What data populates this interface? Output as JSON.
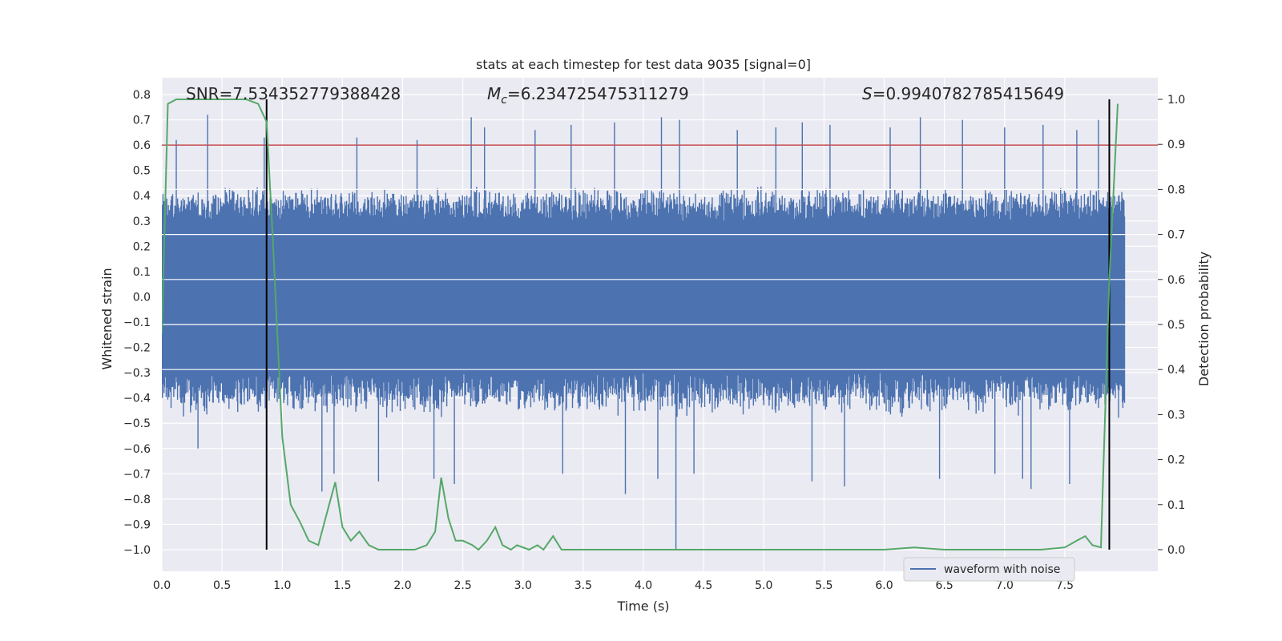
{
  "chart_data": {
    "type": "line",
    "title": "stats at each timestep for test data 9035 [signal=0]",
    "xlabel": "Time (s)",
    "ylabel_left": "Whitened strain",
    "ylabel_right": "Detection probability",
    "xlim": [
      0.0,
      8.0
    ],
    "ylim_left": [
      -1.1,
      0.85
    ],
    "ylim_right": [
      -0.05,
      1.05
    ],
    "x_ticks": [
      "0.0",
      "0.5",
      "1.0",
      "1.5",
      "2.0",
      "2.5",
      "3.0",
      "3.5",
      "4.0",
      "4.5",
      "5.0",
      "5.5",
      "6.0",
      "6.5",
      "7.0",
      "7.5"
    ],
    "y_ticks_left": [
      "0.8",
      "0.7",
      "0.6",
      "0.5",
      "0.4",
      "0.3",
      "0.2",
      "0.1",
      "0.0",
      "−0.1",
      "−0.2",
      "−0.3",
      "−0.4",
      "−0.5",
      "−0.6",
      "−0.7",
      "−0.8",
      "−0.9",
      "−1.0"
    ],
    "y_ticks_right": [
      "1.0",
      "0.9",
      "0.8",
      "0.7",
      "0.6",
      "0.5",
      "0.4",
      "0.3",
      "0.2",
      "0.1",
      "0.0"
    ],
    "grid": true,
    "legend_position": "lower-right",
    "legend_label": "waveform with noise",
    "annotations": {
      "snr": "SNR=7.534352779388428",
      "mc": "=6.234725475311279",
      "mc_symbol": "M",
      "mc_subscript": "c",
      "s": "=0.9940782785415649",
      "s_symbol": "S"
    },
    "threshold": {
      "value": 0.6,
      "axis": "left",
      "color": "#c44e52"
    },
    "vertical_lines": [
      0.87,
      7.87
    ],
    "colors": {
      "waveform": "#4c72b0",
      "probability": "#55a868",
      "threshold": "#c44e52",
      "vertical_lines": "#000000",
      "plot_background": "#eaeaf2",
      "grid": "#ffffff"
    },
    "waveform": {
      "series_name": "waveform with noise",
      "core_band": [
        -0.3,
        0.3
      ],
      "envelope_typical": [
        -0.45,
        0.42
      ],
      "spikes": [
        [
          0.38,
          0.72
        ],
        [
          0.12,
          0.62
        ],
        [
          0.85,
          0.63
        ],
        [
          1.62,
          0.63
        ],
        [
          2.12,
          0.62
        ],
        [
          2.57,
          0.71
        ],
        [
          2.68,
          0.67
        ],
        [
          3.1,
          0.66
        ],
        [
          3.4,
          0.68
        ],
        [
          3.76,
          0.69
        ],
        [
          4.15,
          0.71
        ],
        [
          4.3,
          0.7
        ],
        [
          4.78,
          0.66
        ],
        [
          5.1,
          0.67
        ],
        [
          5.32,
          0.69
        ],
        [
          5.55,
          0.68
        ],
        [
          6.05,
          0.67
        ],
        [
          6.3,
          0.71
        ],
        [
          6.65,
          0.7
        ],
        [
          7.0,
          0.67
        ],
        [
          7.32,
          0.68
        ],
        [
          7.6,
          0.66
        ],
        [
          7.78,
          0.7
        ],
        [
          0.3,
          -0.6
        ],
        [
          1.33,
          -0.77
        ],
        [
          1.43,
          -0.7
        ],
        [
          1.8,
          -0.73
        ],
        [
          2.26,
          -0.72
        ],
        [
          2.43,
          -0.74
        ],
        [
          3.33,
          -0.7
        ],
        [
          3.85,
          -0.78
        ],
        [
          4.12,
          -0.72
        ],
        [
          4.27,
          -1.0
        ],
        [
          4.42,
          -0.7
        ],
        [
          5.4,
          -0.73
        ],
        [
          5.67,
          -0.75
        ],
        [
          6.46,
          -0.72
        ],
        [
          6.92,
          -0.7
        ],
        [
          7.15,
          -0.72
        ],
        [
          7.22,
          -0.76
        ],
        [
          7.54,
          -0.74
        ]
      ]
    },
    "detection_probability": {
      "x": [
        0.0,
        0.05,
        0.12,
        0.2,
        0.3,
        0.5,
        0.7,
        0.8,
        0.87,
        0.92,
        1.0,
        1.07,
        1.15,
        1.22,
        1.3,
        1.37,
        1.44,
        1.5,
        1.57,
        1.64,
        1.72,
        1.8,
        1.9,
        2.0,
        2.1,
        2.2,
        2.27,
        2.32,
        2.38,
        2.44,
        2.5,
        2.58,
        2.63,
        2.7,
        2.77,
        2.83,
        2.9,
        2.95,
        3.05,
        3.12,
        3.17,
        3.25,
        3.32,
        3.4,
        3.6,
        4.0,
        4.5,
        5.0,
        5.5,
        6.0,
        6.25,
        6.5,
        7.0,
        7.2,
        7.3,
        7.5,
        7.6,
        7.67,
        7.73,
        7.8,
        7.87,
        7.94
      ],
      "y": [
        0.48,
        0.99,
        1.0,
        1.0,
        1.0,
        1.0,
        1.0,
        0.99,
        0.95,
        0.7,
        0.25,
        0.1,
        0.06,
        0.02,
        0.01,
        0.08,
        0.15,
        0.05,
        0.02,
        0.04,
        0.01,
        0.0,
        0.0,
        0.0,
        0.0,
        0.01,
        0.04,
        0.16,
        0.07,
        0.02,
        0.02,
        0.01,
        0.0,
        0.02,
        0.05,
        0.01,
        0.0,
        0.01,
        0.0,
        0.01,
        0.0,
        0.03,
        0.0,
        0.0,
        0.0,
        0.0,
        0.0,
        0.0,
        0.0,
        0.0,
        0.005,
        0.0,
        0.0,
        0.0,
        0.0,
        0.005,
        0.02,
        0.03,
        0.01,
        0.005,
        0.6,
        0.99
      ]
    }
  }
}
